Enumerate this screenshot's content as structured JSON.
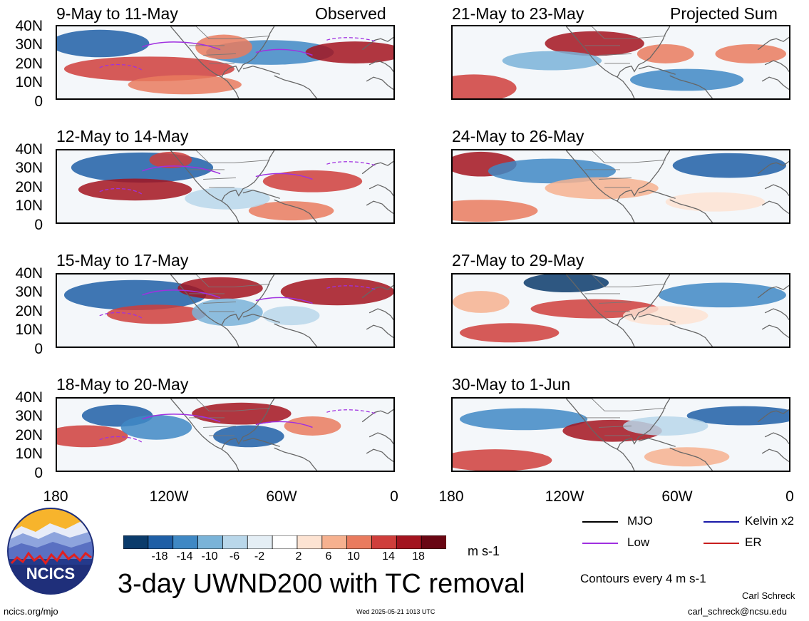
{
  "headings": {
    "left": "Observed",
    "right": "Projected Sum"
  },
  "panels_left": [
    {
      "title": "9-May to 11-May"
    },
    {
      "title": "12-May to 14-May"
    },
    {
      "title": "15-May to 17-May"
    },
    {
      "title": "18-May to 20-May"
    }
  ],
  "panels_right": [
    {
      "title": "21-May to 23-May"
    },
    {
      "title": "24-May to 26-May"
    },
    {
      "title": "27-May to 29-May"
    },
    {
      "title": "30-May to 1-Jun"
    }
  ],
  "lat_ticks": [
    "40N",
    "30N",
    "20N",
    "10N",
    "0"
  ],
  "lon_ticks": [
    "180",
    "120W",
    "60W",
    "0"
  ],
  "colorbar": {
    "labels": [
      "-18",
      "-14",
      "-10",
      "-6",
      "-2",
      "2",
      "6",
      "10",
      "14",
      "18"
    ],
    "colors": [
      "#0b3b6b",
      "#1f5fa6",
      "#3f88c4",
      "#7ab3d8",
      "#b9d7ea",
      "#e4eef5",
      "#ffffff",
      "#fde3d2",
      "#f6b18f",
      "#e97b5e",
      "#cf3e3b",
      "#a3141f",
      "#690613"
    ],
    "unit": "m s-1"
  },
  "legend": {
    "items": [
      {
        "label": "MJO",
        "color": "#000000"
      },
      {
        "label": "Kelvin x2",
        "color": "#1a1aa8"
      },
      {
        "label": "Low",
        "color": "#a030e0"
      },
      {
        "label": "ER",
        "color": "#c81e1e"
      }
    ],
    "contour_note": "Contours every 4 m s-1"
  },
  "main_title": "3-day UWND200 with TC removal",
  "logo_text": "NCICS",
  "footer": {
    "url": "ncics.org/mjo",
    "timestamp": "Wed 2025-05-21 1013 UTC",
    "author": "Carl Schreck",
    "email": "carl_schreck@ncsu.edu"
  }
}
